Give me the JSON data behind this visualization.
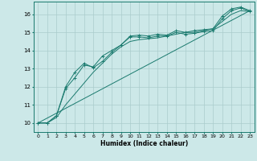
{
  "xlabel": "Humidex (Indice chaleur)",
  "bg_color": "#cce8e8",
  "line_color": "#1a7a6e",
  "grid_color": "#aacccc",
  "xlim": [
    -0.5,
    23.5
  ],
  "ylim": [
    9.5,
    16.7
  ],
  "xticks": [
    0,
    1,
    2,
    3,
    4,
    5,
    6,
    7,
    8,
    9,
    10,
    11,
    12,
    13,
    14,
    15,
    16,
    17,
    18,
    19,
    20,
    21,
    22,
    23
  ],
  "yticks": [
    10,
    11,
    12,
    13,
    14,
    15,
    16
  ],
  "series1_x": [
    0,
    1,
    2,
    3,
    4,
    5,
    6,
    7,
    8,
    9,
    10,
    11,
    12,
    13,
    14,
    15,
    16,
    17,
    18,
    19,
    20,
    21,
    22,
    23
  ],
  "series1_y": [
    10.0,
    10.0,
    10.4,
    11.9,
    12.5,
    13.2,
    13.1,
    13.7,
    14.0,
    14.3,
    14.8,
    14.85,
    14.8,
    14.9,
    14.85,
    15.1,
    15.0,
    15.1,
    15.15,
    15.2,
    15.9,
    16.3,
    16.4,
    16.2
  ],
  "series2_x": [
    0,
    1,
    2,
    3,
    4,
    5,
    6,
    7,
    8,
    9,
    10,
    11,
    12,
    13,
    14,
    15,
    16,
    17,
    18,
    19,
    20,
    21,
    22,
    23
  ],
  "series2_y": [
    10.0,
    10.0,
    10.4,
    12.0,
    12.8,
    13.3,
    13.05,
    13.4,
    13.9,
    14.3,
    14.75,
    14.75,
    14.7,
    14.8,
    14.8,
    15.0,
    14.9,
    14.95,
    15.05,
    15.1,
    15.75,
    16.2,
    16.35,
    16.15
  ],
  "series3_x": [
    0,
    1,
    2,
    3,
    4,
    5,
    6,
    7,
    8,
    9,
    10,
    11,
    12,
    13,
    14,
    15,
    16,
    17,
    18,
    19,
    20,
    21,
    22,
    23
  ],
  "series3_y": [
    10.0,
    10.0,
    10.3,
    11.0,
    11.6,
    12.2,
    12.8,
    13.3,
    13.8,
    14.2,
    14.5,
    14.6,
    14.65,
    14.7,
    14.8,
    14.9,
    15.0,
    15.0,
    15.1,
    15.2,
    15.6,
    16.0,
    16.2,
    16.15
  ],
  "series4_x": [
    0,
    23
  ],
  "series4_y": [
    10.0,
    16.2
  ]
}
